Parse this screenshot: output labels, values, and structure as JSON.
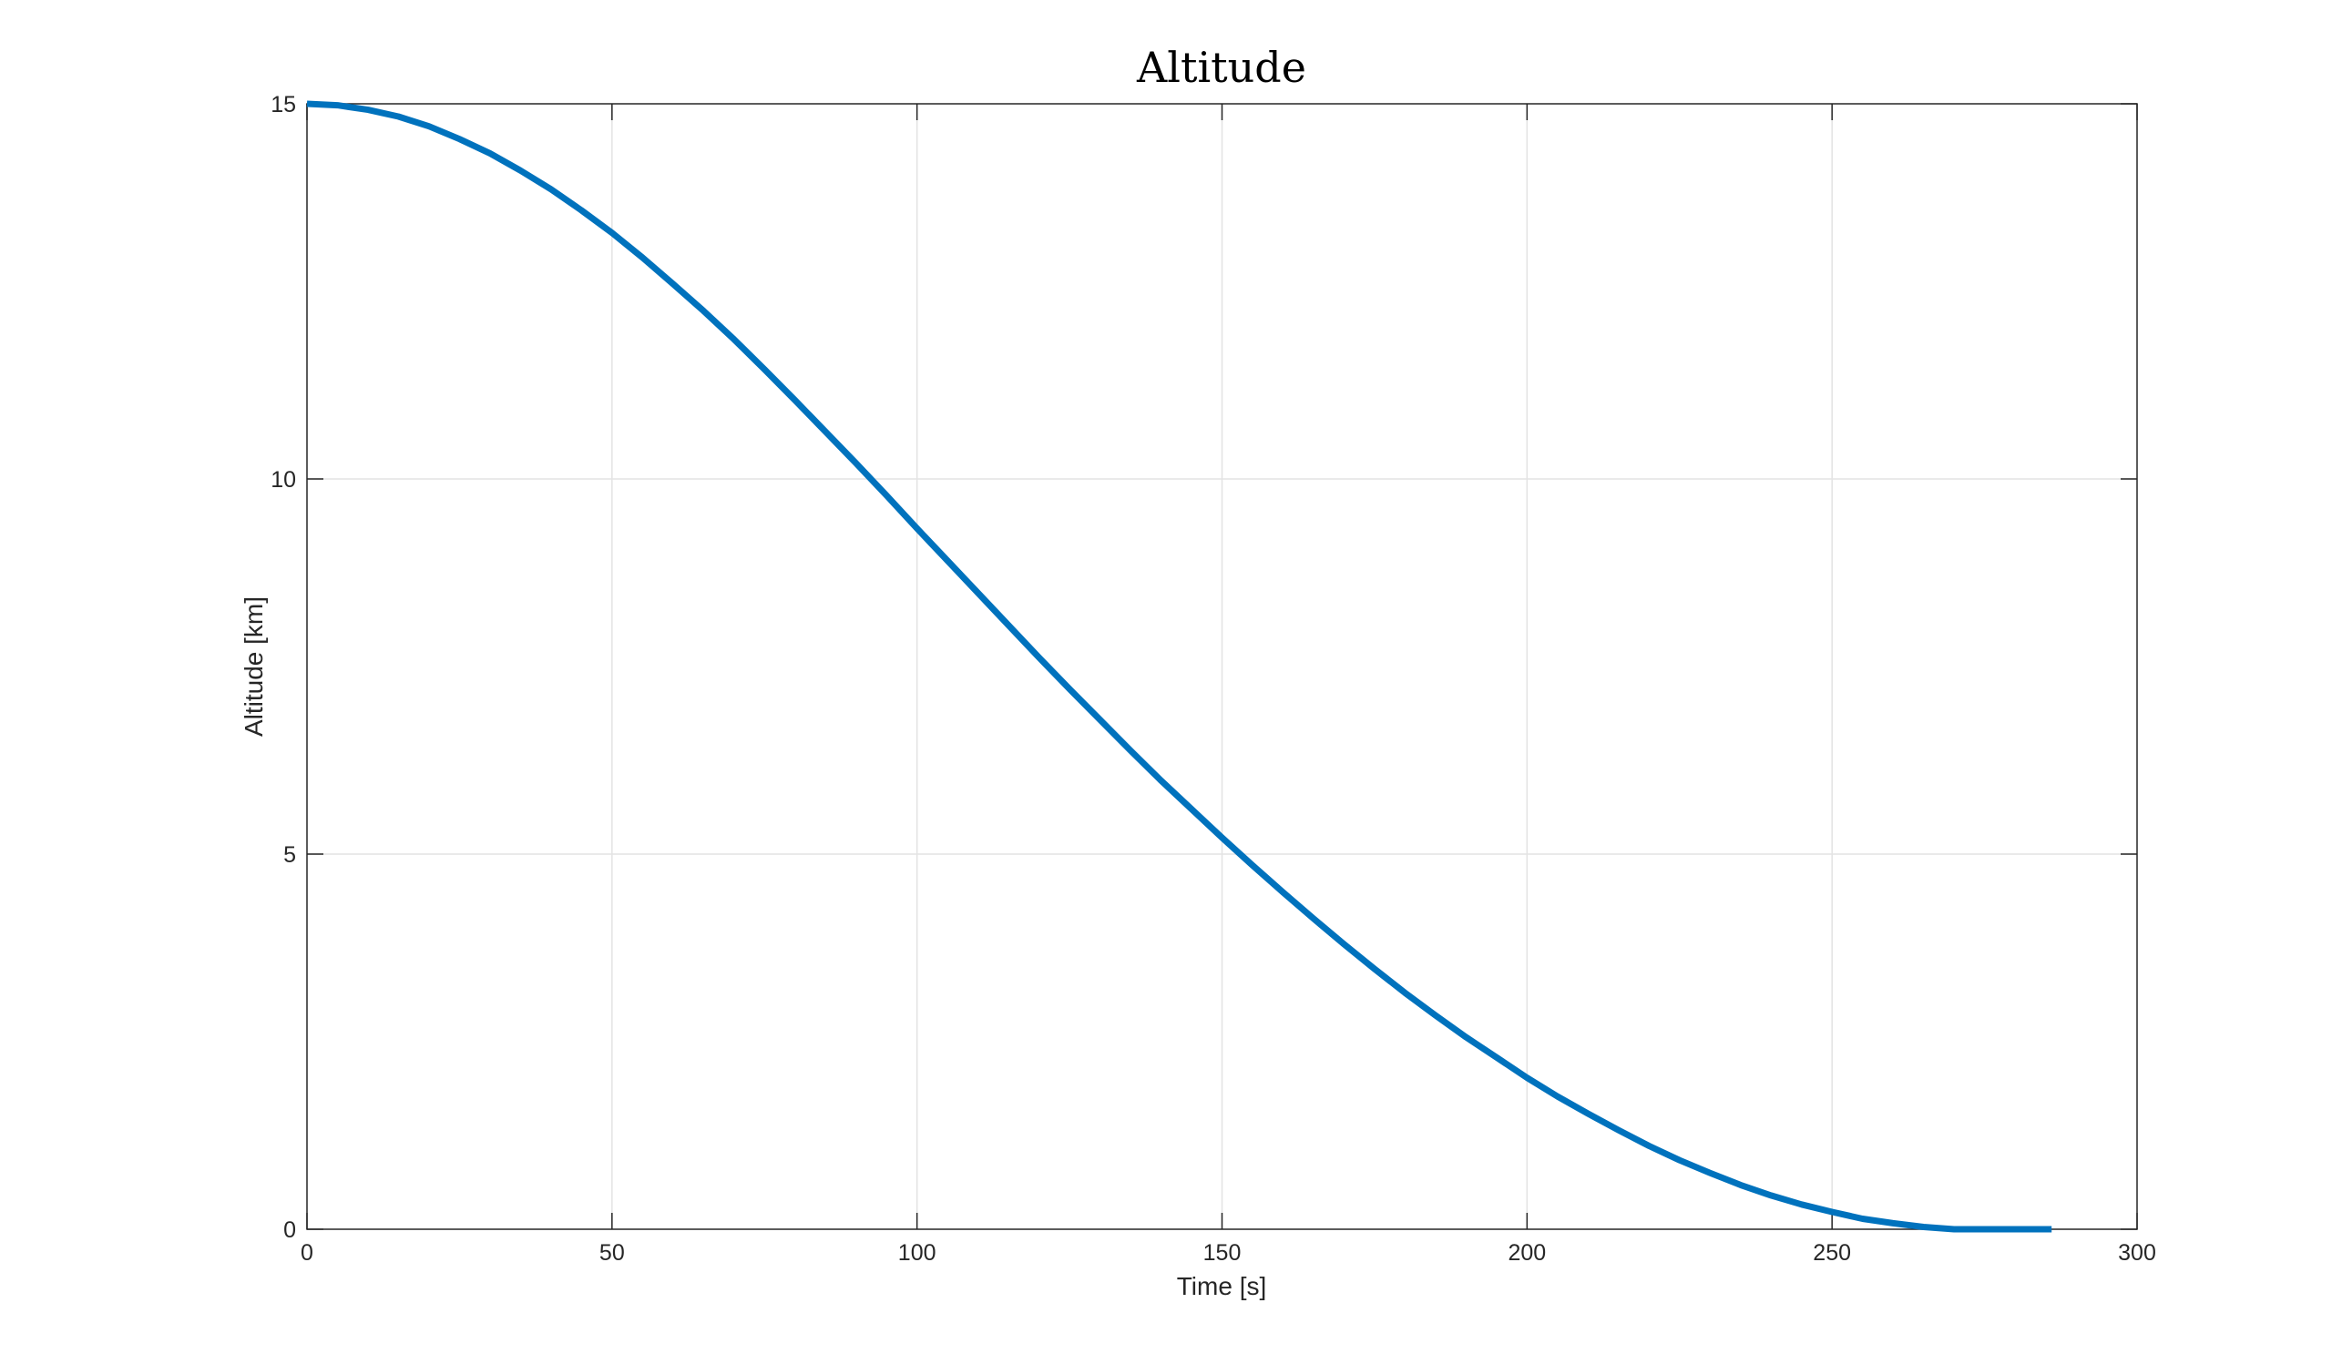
{
  "chart_data": {
    "type": "line",
    "title": "Altitude",
    "xlabel": "Time [s]",
    "ylabel": "Altitude [km]",
    "xlim": [
      0,
      300
    ],
    "ylim": [
      0,
      15
    ],
    "x_ticks": [
      "0",
      "50",
      "100",
      "150",
      "200",
      "250",
      "300"
    ],
    "y_ticks": [
      "0",
      "5",
      "10",
      "15"
    ],
    "grid": true,
    "legend": "none",
    "line_color": "#0072BD",
    "series": [
      {
        "x": [
          0,
          5,
          10,
          15,
          20,
          25,
          30,
          35,
          40,
          45,
          50,
          55,
          60,
          65,
          70,
          75,
          80,
          85,
          90,
          95,
          100,
          105,
          110,
          115,
          120,
          125,
          130,
          135,
          140,
          145,
          150,
          155,
          160,
          165,
          170,
          175,
          180,
          185,
          190,
          195,
          200,
          205,
          210,
          215,
          220,
          225,
          230,
          235,
          240,
          245,
          250,
          255,
          260,
          265,
          270,
          275,
          280,
          285,
          286
        ],
        "values": [
          15.0,
          14.98,
          14.92,
          14.83,
          14.7,
          14.53,
          14.34,
          14.11,
          13.86,
          13.58,
          13.28,
          12.95,
          12.6,
          12.24,
          11.86,
          11.46,
          11.05,
          10.63,
          10.21,
          9.78,
          9.34,
          8.91,
          8.48,
          8.05,
          7.62,
          7.2,
          6.79,
          6.38,
          5.98,
          5.6,
          5.22,
          4.85,
          4.49,
          4.14,
          3.8,
          3.47,
          3.15,
          2.85,
          2.56,
          2.29,
          2.02,
          1.77,
          1.54,
          1.32,
          1.11,
          0.92,
          0.75,
          0.59,
          0.45,
          0.33,
          0.23,
          0.14,
          0.08,
          0.03,
          0.0,
          0.0,
          0.0,
          0.0,
          0.0
        ]
      }
    ]
  }
}
